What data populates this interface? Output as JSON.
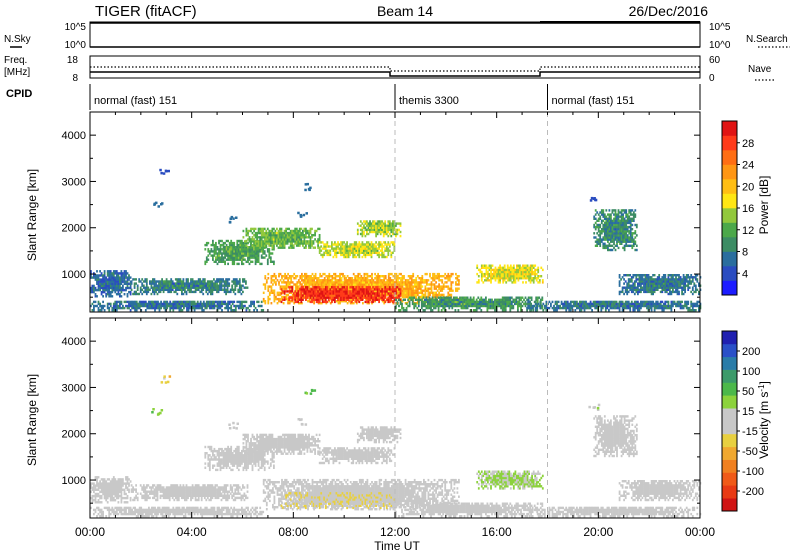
{
  "header": {
    "station": "TIGER (fitACF)",
    "beam": "Beam 14",
    "date": "26/Dec/2016"
  },
  "noise_panel": {
    "left_label": "N.Sky",
    "left_ticks": [
      "10^5",
      "10^0"
    ],
    "right_label": "N.Search",
    "right_ticks": [
      "10^5",
      "10^0"
    ]
  },
  "freq_panel": {
    "left_label_top": "Freq.",
    "left_label_bottom": "[MHz]",
    "left_ticks": [
      "18",
      "8"
    ],
    "right_label": "Nave",
    "right_ticks": [
      "60",
      "0"
    ],
    "cpid_label": "CPID",
    "modes": [
      {
        "label": "normal (fast) 151",
        "start_h": 0,
        "end_h": 12
      },
      {
        "label": "themis 3300",
        "start_h": 12,
        "end_h": 18
      },
      {
        "label": "normal (fast) 151",
        "start_h": 18,
        "end_h": 24
      }
    ]
  },
  "axis": {
    "ylabel": "Slant Range [km]",
    "yticks": [
      1000,
      2000,
      3000,
      4000
    ],
    "xlabel": "Time UT",
    "xtick_labels": [
      "00:00",
      "04:00",
      "08:00",
      "12:00",
      "16:00",
      "20:00",
      "00:00"
    ]
  },
  "colorbars": {
    "power": {
      "label": "Power [dB]",
      "ticks": [
        "4",
        "8",
        "12",
        "16",
        "20",
        "24",
        "28"
      ],
      "colors": [
        "#1c1cff",
        "#2a4cc0",
        "#2a6e9e",
        "#3c8c64",
        "#4ca84a",
        "#92c83c",
        "#ffe614",
        "#ffbe14",
        "#ff9614",
        "#ff6e14",
        "#ff3a1a",
        "#e01414"
      ]
    },
    "velocity": {
      "label": "Velocity [m s",
      "label_sup": "-1",
      "label_end": "]",
      "ticks": [
        "200",
        "100",
        "50",
        "15",
        "-15",
        "-50",
        "-100",
        "-200"
      ],
      "colors": [
        "#2020b0",
        "#2a50c8",
        "#2a7ca8",
        "#3c9a6a",
        "#4cb84a",
        "#8cd23c",
        "#c8c8c8",
        "#c8c8c8",
        "#e8d040",
        "#f0a830",
        "#f08020",
        "#f05a18",
        "#e83a14",
        "#d01414"
      ]
    }
  },
  "chart_data": {
    "type": "heatmap",
    "x_unit": "hours UT",
    "y_unit": "km",
    "xlim": [
      0,
      24
    ],
    "ylim": [
      180,
      4500
    ],
    "panels": [
      "power",
      "velocity"
    ],
    "regions": [
      {
        "x0": 0.0,
        "x1": 6.8,
        "y0": 200,
        "y1": 420,
        "power": 6,
        "velocity": -10
      },
      {
        "x0": 0.0,
        "x1": 1.6,
        "y0": 500,
        "y1": 1050,
        "power": 5,
        "velocity": 0
      },
      {
        "x0": 1.6,
        "x1": 6.2,
        "y0": 550,
        "y1": 900,
        "power": 7,
        "velocity": 5
      },
      {
        "x0": 4.5,
        "x1": 7.2,
        "y0": 1200,
        "y1": 1700,
        "power": 10,
        "velocity": 10
      },
      {
        "x0": 6.0,
        "x1": 9.0,
        "y0": 1550,
        "y1": 2000,
        "power": 12,
        "velocity": 5
      },
      {
        "x0": 6.8,
        "x1": 14.5,
        "y0": 350,
        "y1": 1000,
        "power": 20,
        "velocity": -5
      },
      {
        "x0": 7.5,
        "x1": 12.2,
        "y0": 380,
        "y1": 720,
        "power": 28,
        "velocity": -30
      },
      {
        "x0": 9.0,
        "x1": 12.0,
        "y0": 1350,
        "y1": 1700,
        "power": 15,
        "velocity": 5
      },
      {
        "x0": 10.5,
        "x1": 12.2,
        "y0": 1800,
        "y1": 2150,
        "power": 14,
        "velocity": 10
      },
      {
        "x0": 12.0,
        "x1": 17.8,
        "y0": 200,
        "y1": 500,
        "power": 9,
        "velocity": -10
      },
      {
        "x0": 15.2,
        "x1": 17.8,
        "y0": 800,
        "y1": 1200,
        "power": 16,
        "velocity": 40
      },
      {
        "x0": 17.2,
        "x1": 24.0,
        "y0": 200,
        "y1": 420,
        "power": 6,
        "velocity": -10
      },
      {
        "x0": 20.8,
        "x1": 24.0,
        "y0": 550,
        "y1": 1000,
        "power": 6,
        "velocity": 0
      },
      {
        "x0": 19.8,
        "x1": 21.5,
        "y0": 1500,
        "y1": 2400,
        "power": 8,
        "velocity": 5
      }
    ],
    "scatter_points": [
      {
        "x": 2.6,
        "y": 2500,
        "power": 6,
        "velocity": 60
      },
      {
        "x": 2.9,
        "y": 3200,
        "power": 4,
        "velocity": -60
      },
      {
        "x": 8.6,
        "y": 2900,
        "power": 6,
        "velocity": 100
      },
      {
        "x": 8.3,
        "y": 2300,
        "power": 5,
        "velocity": 10
      },
      {
        "x": 19.8,
        "y": 2600,
        "power": 4,
        "velocity": 20
      },
      {
        "x": 5.6,
        "y": 2200,
        "power": 5,
        "velocity": 0
      }
    ]
  }
}
